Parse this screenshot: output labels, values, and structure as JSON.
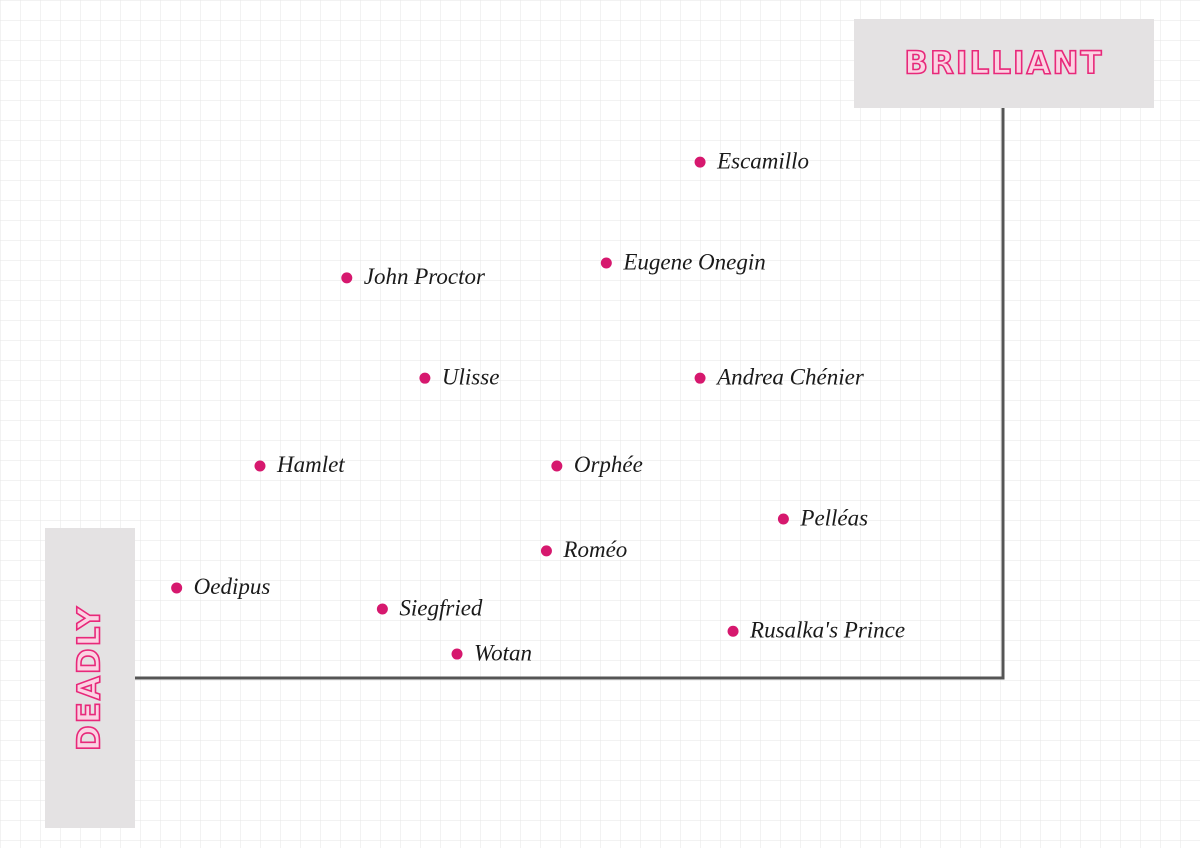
{
  "chart_data": {
    "type": "scatter",
    "xlabel": "DEADLY",
    "ylabel": "BRILLIANT",
    "labels": [
      "Escamillo",
      "Eugene Onegin",
      "John Proctor",
      "Ulisse",
      "Andrea Chénier",
      "Hamlet",
      "Orphée",
      "Pelléas",
      "Roméo",
      "Oedipus",
      "Siegfried",
      "Rusalka's Prince",
      "Wotan"
    ],
    "x": [
      65.1,
      54.3,
      24.4,
      33.4,
      65.1,
      14.4,
      48.6,
      74.7,
      47.4,
      4.8,
      28.5,
      68.9,
      37.1
    ],
    "values": [
      90.5,
      72.8,
      70.2,
      52.6,
      52.6,
      37.2,
      37.2,
      27.9,
      22.3,
      15.8,
      12.1,
      8.2,
      4.2
    ],
    "color": "#d6186e",
    "xlim": [
      0,
      100
    ],
    "ylim": [
      0,
      100
    ]
  }
}
